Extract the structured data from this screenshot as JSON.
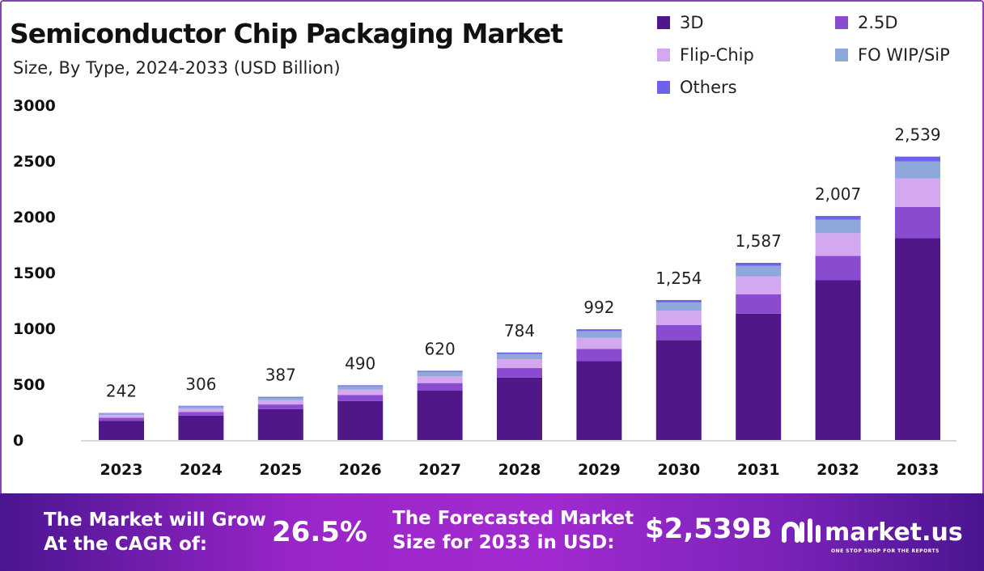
{
  "chart_data": {
    "type": "bar",
    "stacked": true,
    "title": "Semiconductor Chip Packaging Market",
    "subtitle": "Size, By Type, 2024-2033 (USD Billion)",
    "categories": [
      "2023",
      "2024",
      "2025",
      "2026",
      "2027",
      "2028",
      "2029",
      "2030",
      "2031",
      "2032",
      "2033"
    ],
    "totals": [
      242,
      306,
      387,
      490,
      620,
      784,
      992,
      1254,
      1587,
      2007,
      2539
    ],
    "total_labels": [
      "242",
      "306",
      "387",
      "490",
      "620",
      "784",
      "992",
      "1,254",
      "1,587",
      "2,007",
      "2,539"
    ],
    "series": [
      {
        "name": "3D",
        "color": "#4f1787",
        "values": [
          172.5,
          218.2,
          275.9,
          349.4,
          442.1,
          559.0,
          707.3,
          894.1,
          1131.5,
          1431.0,
          1810.0
        ]
      },
      {
        "name": "2.5D",
        "color": "#8a4bd0",
        "values": [
          26.4,
          33.4,
          42.2,
          53.4,
          67.6,
          85.5,
          108.1,
          136.7,
          173.0,
          218.8,
          277.0
        ]
      },
      {
        "name": "Flip-Chip",
        "color": "#d4a8ee",
        "values": [
          24.4,
          30.9,
          39.1,
          49.5,
          62.6,
          79.2,
          100.2,
          126.7,
          160.3,
          202.7,
          256.0
        ]
      },
      {
        "name": "FO WIP/SiP",
        "color": "#8fa8dc",
        "values": [
          14.5,
          18.4,
          23.2,
          29.4,
          37.2,
          47.0,
          59.5,
          75.2,
          95.2,
          120.4,
          153.0
        ]
      },
      {
        "name": "Others",
        "color": "#6e63e8",
        "values": [
          4.1,
          5.2,
          6.6,
          8.3,
          10.5,
          13.3,
          16.9,
          21.3,
          27.0,
          34.1,
          43.0
        ]
      }
    ],
    "yticks": [
      "0",
      "500",
      "1000",
      "1500",
      "2000",
      "2500",
      "3000"
    ],
    "ylim": [
      0,
      3000
    ],
    "grid": false,
    "legend_position": "top-right"
  },
  "banner": {
    "cagr_label_1": "The Market will Grow",
    "cagr_label_2": "At the CAGR of:",
    "cagr_value": "26.5%",
    "forecast_label_1": "The Forecasted Market",
    "forecast_label_2": "Size for 2033 in USD:",
    "forecast_value": "$2,539B",
    "logo_name": "market.us",
    "logo_tagline": "ONE STOP SHOP FOR THE REPORTS"
  }
}
